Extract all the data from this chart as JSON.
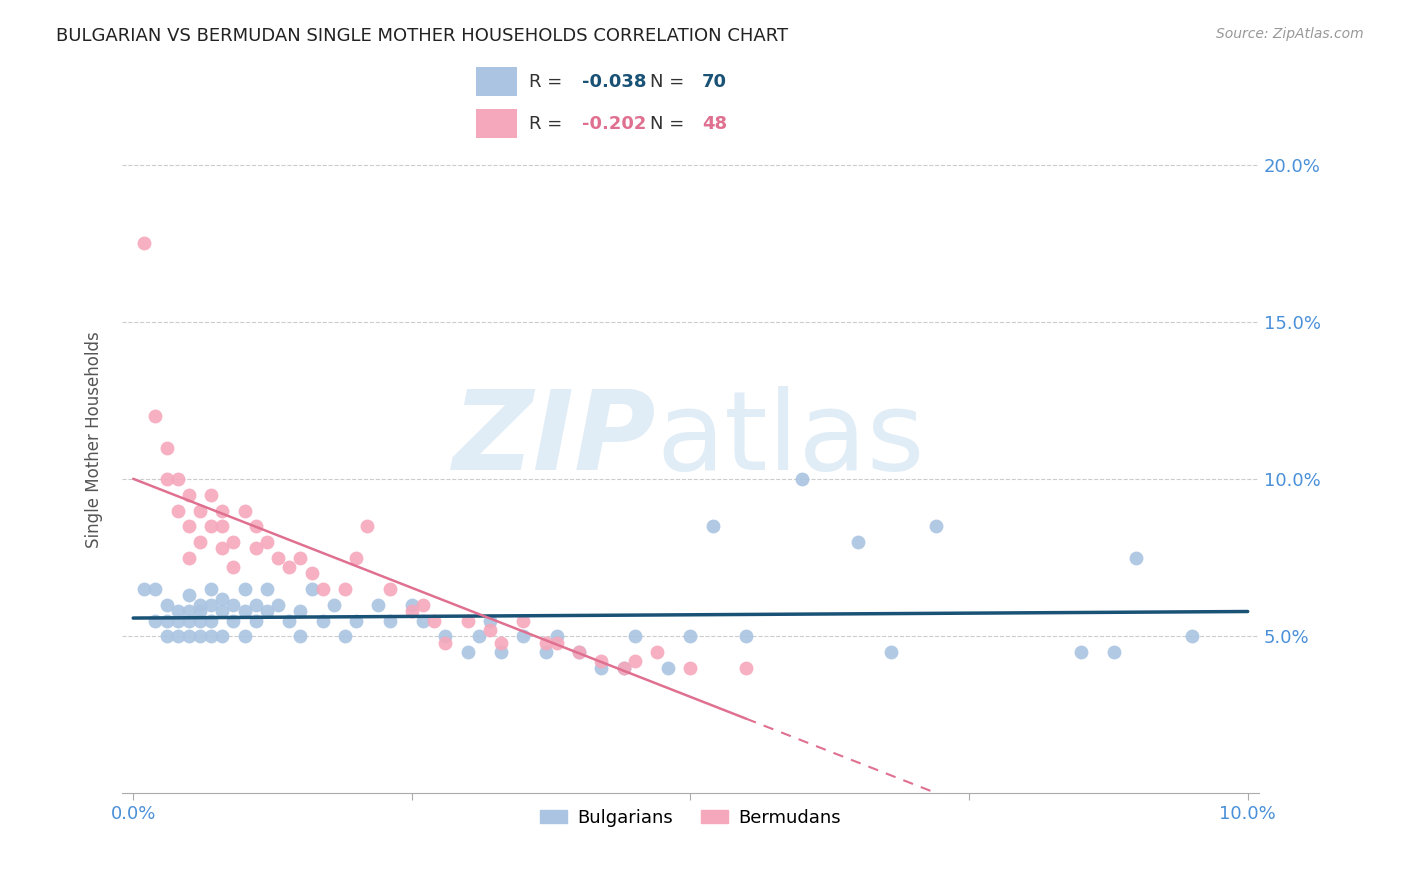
{
  "title": "BULGARIAN VS BERMUDAN SINGLE MOTHER HOUSEHOLDS CORRELATION CHART",
  "source": "Source: ZipAtlas.com",
  "ylabel": "Single Mother Households",
  "xlim": [
    0.0,
    0.1
  ],
  "ylim": [
    0.0,
    0.22
  ],
  "yticks": [
    0.05,
    0.1,
    0.15,
    0.2
  ],
  "ytick_labels": [
    "5.0%",
    "10.0%",
    "15.0%",
    "20.0%"
  ],
  "xticks": [
    0.0,
    0.025,
    0.05,
    0.075,
    0.1
  ],
  "xtick_labels": [
    "0.0%",
    "",
    "",
    "",
    "10.0%"
  ],
  "blue_R": "-0.038",
  "blue_N": "70",
  "pink_R": "-0.202",
  "pink_N": "48",
  "blue_color": "#aac4e2",
  "pink_color": "#f5a8bc",
  "blue_line_color": "#1a5276",
  "pink_line_color": "#e07090",
  "grid_color": "#cccccc",
  "title_color": "#222222",
  "axis_label_color": "#4a90d9",
  "blue_scatter_x": [
    0.001,
    0.002,
    0.002,
    0.003,
    0.003,
    0.003,
    0.004,
    0.004,
    0.004,
    0.005,
    0.005,
    0.005,
    0.005,
    0.006,
    0.006,
    0.006,
    0.006,
    0.007,
    0.007,
    0.007,
    0.007,
    0.008,
    0.008,
    0.008,
    0.009,
    0.009,
    0.01,
    0.01,
    0.01,
    0.011,
    0.011,
    0.012,
    0.012,
    0.013,
    0.014,
    0.015,
    0.015,
    0.016,
    0.017,
    0.018,
    0.019,
    0.02,
    0.022,
    0.023,
    0.025,
    0.026,
    0.028,
    0.03,
    0.031,
    0.032,
    0.033,
    0.035,
    0.037,
    0.038,
    0.04,
    0.042,
    0.044,
    0.045,
    0.048,
    0.05,
    0.052,
    0.055,
    0.06,
    0.065,
    0.068,
    0.072,
    0.085,
    0.088,
    0.09,
    0.095
  ],
  "blue_scatter_y": [
    0.065,
    0.065,
    0.055,
    0.06,
    0.055,
    0.05,
    0.058,
    0.055,
    0.05,
    0.063,
    0.058,
    0.055,
    0.05,
    0.06,
    0.058,
    0.055,
    0.05,
    0.065,
    0.06,
    0.055,
    0.05,
    0.062,
    0.058,
    0.05,
    0.06,
    0.055,
    0.065,
    0.058,
    0.05,
    0.06,
    0.055,
    0.065,
    0.058,
    0.06,
    0.055,
    0.05,
    0.058,
    0.065,
    0.055,
    0.06,
    0.05,
    0.055,
    0.06,
    0.055,
    0.06,
    0.055,
    0.05,
    0.045,
    0.05,
    0.055,
    0.045,
    0.05,
    0.045,
    0.05,
    0.045,
    0.04,
    0.04,
    0.05,
    0.04,
    0.05,
    0.085,
    0.05,
    0.1,
    0.08,
    0.045,
    0.085,
    0.045,
    0.045,
    0.075,
    0.05
  ],
  "pink_scatter_x": [
    0.001,
    0.002,
    0.003,
    0.003,
    0.004,
    0.004,
    0.005,
    0.005,
    0.005,
    0.006,
    0.006,
    0.007,
    0.007,
    0.008,
    0.008,
    0.008,
    0.009,
    0.009,
    0.01,
    0.011,
    0.011,
    0.012,
    0.013,
    0.014,
    0.015,
    0.016,
    0.017,
    0.019,
    0.02,
    0.021,
    0.023,
    0.025,
    0.026,
    0.027,
    0.028,
    0.03,
    0.032,
    0.033,
    0.035,
    0.037,
    0.038,
    0.04,
    0.042,
    0.044,
    0.045,
    0.047,
    0.05,
    0.055
  ],
  "pink_scatter_y": [
    0.175,
    0.12,
    0.11,
    0.1,
    0.1,
    0.09,
    0.095,
    0.085,
    0.075,
    0.09,
    0.08,
    0.095,
    0.085,
    0.09,
    0.078,
    0.085,
    0.08,
    0.072,
    0.09,
    0.078,
    0.085,
    0.08,
    0.075,
    0.072,
    0.075,
    0.07,
    0.065,
    0.065,
    0.075,
    0.085,
    0.065,
    0.058,
    0.06,
    0.055,
    0.048,
    0.055,
    0.052,
    0.048,
    0.055,
    0.048,
    0.048,
    0.045,
    0.042,
    0.04,
    0.042,
    0.045,
    0.04,
    0.04
  ]
}
